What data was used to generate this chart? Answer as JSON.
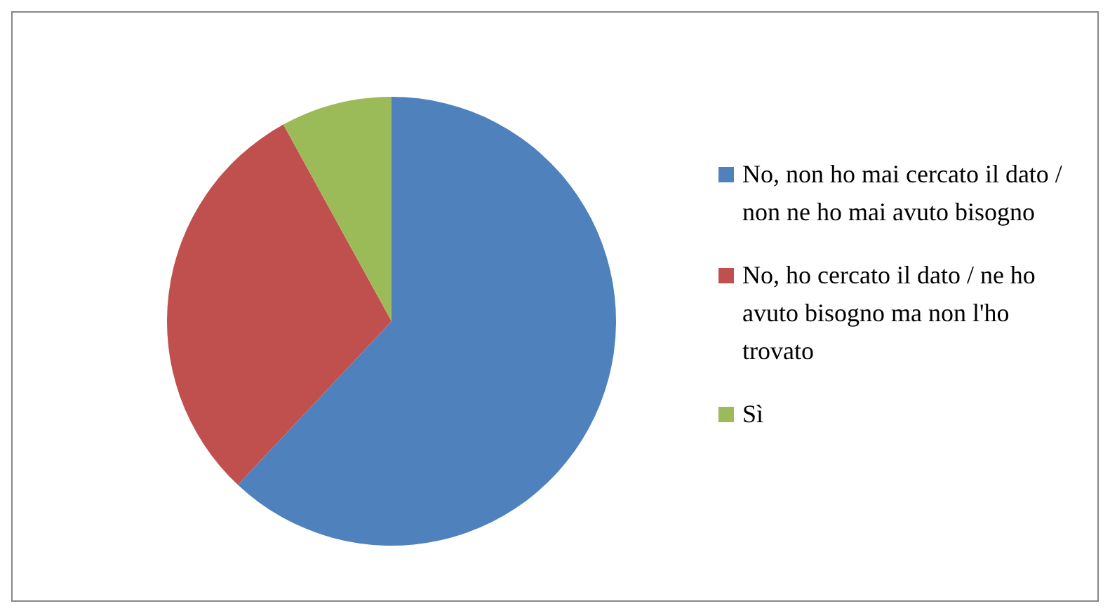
{
  "chart_data": {
    "type": "pie",
    "categories": [
      "No, non ho mai cercato il dato / non ne ho mai avuto bisogno",
      "No, ho cercato il dato / ne ho avuto bisogno ma non l'ho trovato",
      "Sì"
    ],
    "values": [
      62,
      30,
      8
    ],
    "colors": [
      "#4f81bd",
      "#c0504d",
      "#9bbb59"
    ],
    "legend": "right"
  }
}
